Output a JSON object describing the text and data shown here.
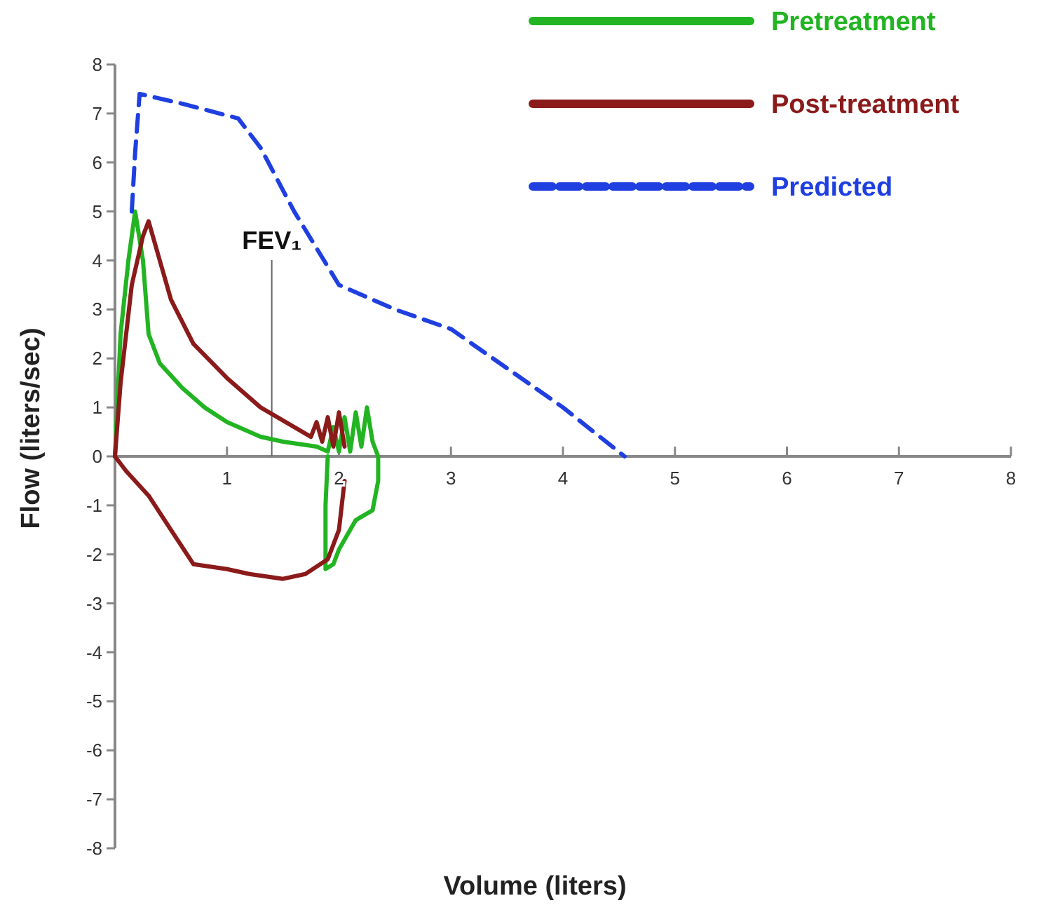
{
  "chart_data": {
    "type": "line",
    "xlabel": "Volume (liters)",
    "ylabel": "Flow (liters/sec)",
    "xlim": [
      0,
      8
    ],
    "xticks": [
      1,
      2,
      3,
      4,
      5,
      6,
      7,
      8
    ],
    "ylim": [
      -8,
      8
    ],
    "yticks": [
      -8,
      -7,
      -6,
      -5,
      -4,
      -3,
      -2,
      -1,
      0,
      1,
      2,
      3,
      4,
      5,
      6,
      7,
      8
    ],
    "grid": false,
    "legend": "top right",
    "marker": "none",
    "ref_lines": [
      {
        "axis": "x",
        "value": 1.4,
        "label": "FEV₁",
        "color": "#666666"
      }
    ],
    "series": [
      {
        "name": "Pretreatment",
        "color": "#22b422",
        "line_style": "solid",
        "x": [
          0,
          0.02,
          0.05,
          0.12,
          0.18,
          0.25,
          0.3,
          0.4,
          0.6,
          0.8,
          1.0,
          1.3,
          1.5,
          1.8,
          1.9,
          1.95,
          2.0,
          2.05,
          2.1,
          2.15,
          2.2,
          2.25,
          2.3,
          2.35,
          2.35,
          2.3,
          2.15,
          2.0,
          1.95,
          1.88,
          1.88,
          1.9
        ],
        "values": [
          0,
          1,
          2.5,
          4,
          5,
          4,
          2.5,
          1.9,
          1.4,
          1,
          0.7,
          0.4,
          0.3,
          0.2,
          0.1,
          0.6,
          0.1,
          0.8,
          0.1,
          0.9,
          0.2,
          1.0,
          0.3,
          0,
          -0.5,
          -1.1,
          -1.3,
          -1.9,
          -2.2,
          -2.3,
          -1,
          0
        ]
      },
      {
        "name": "Post-treatment",
        "color": "#8b1a1a",
        "line_style": "solid",
        "x": [
          0,
          0.05,
          0.15,
          0.25,
          0.3,
          0.4,
          0.5,
          0.7,
          1.0,
          1.3,
          1.6,
          1.75,
          1.8,
          1.85,
          1.9,
          1.95,
          2.0,
          2.05
        ],
        "values": [
          0,
          1.5,
          3.5,
          4.5,
          4.8,
          4,
          3.2,
          2.3,
          1.6,
          1,
          0.6,
          0.4,
          0.7,
          0.3,
          0.8,
          0.2,
          0.9,
          0.2
        ]
      },
      {
        "name": "Predicted",
        "color": "#1f3fe0",
        "line_style": "dashed",
        "x": [
          0.15,
          0.18,
          0.22,
          0.6,
          1.1,
          1.3,
          1.6,
          2.0,
          2.5,
          3.0,
          3.5,
          4.0,
          4.55
        ],
        "values": [
          5,
          6.2,
          7.4,
          7.2,
          6.9,
          6.3,
          5,
          3.5,
          3,
          2.6,
          1.8,
          1,
          0
        ]
      },
      {
        "color": "#8b1a1a",
        "line_style": "solid",
        "x": [
          0,
          0.1,
          0.3,
          0.5,
          0.7,
          1.0,
          1.2,
          1.5,
          1.7,
          1.9,
          2.0,
          2.05
        ],
        "values": [
          0,
          -0.3,
          -0.8,
          -1.5,
          -2.2,
          -2.3,
          -2.4,
          -2.5,
          -2.4,
          -2.1,
          -1.5,
          -0.5
        ]
      }
    ]
  }
}
